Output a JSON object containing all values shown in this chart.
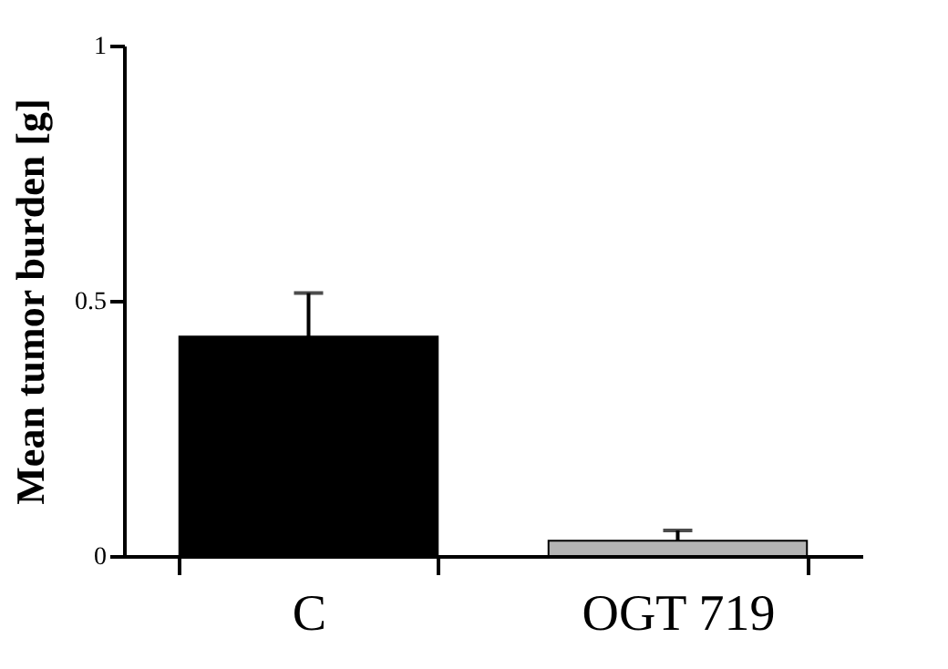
{
  "chart_data": {
    "type": "bar",
    "ylabel": "Mean tumor burden [g]",
    "categories": [
      "C",
      "OGT 719"
    ],
    "values": [
      0.43,
      0.03
    ],
    "colors": [
      "#000000",
      "#b4b4b4"
    ],
    "errors": [
      0.085,
      0.02
    ],
    "ylim": [
      0,
      1
    ],
    "yticks": [
      0,
      0.5,
      1
    ],
    "grid": false
  }
}
